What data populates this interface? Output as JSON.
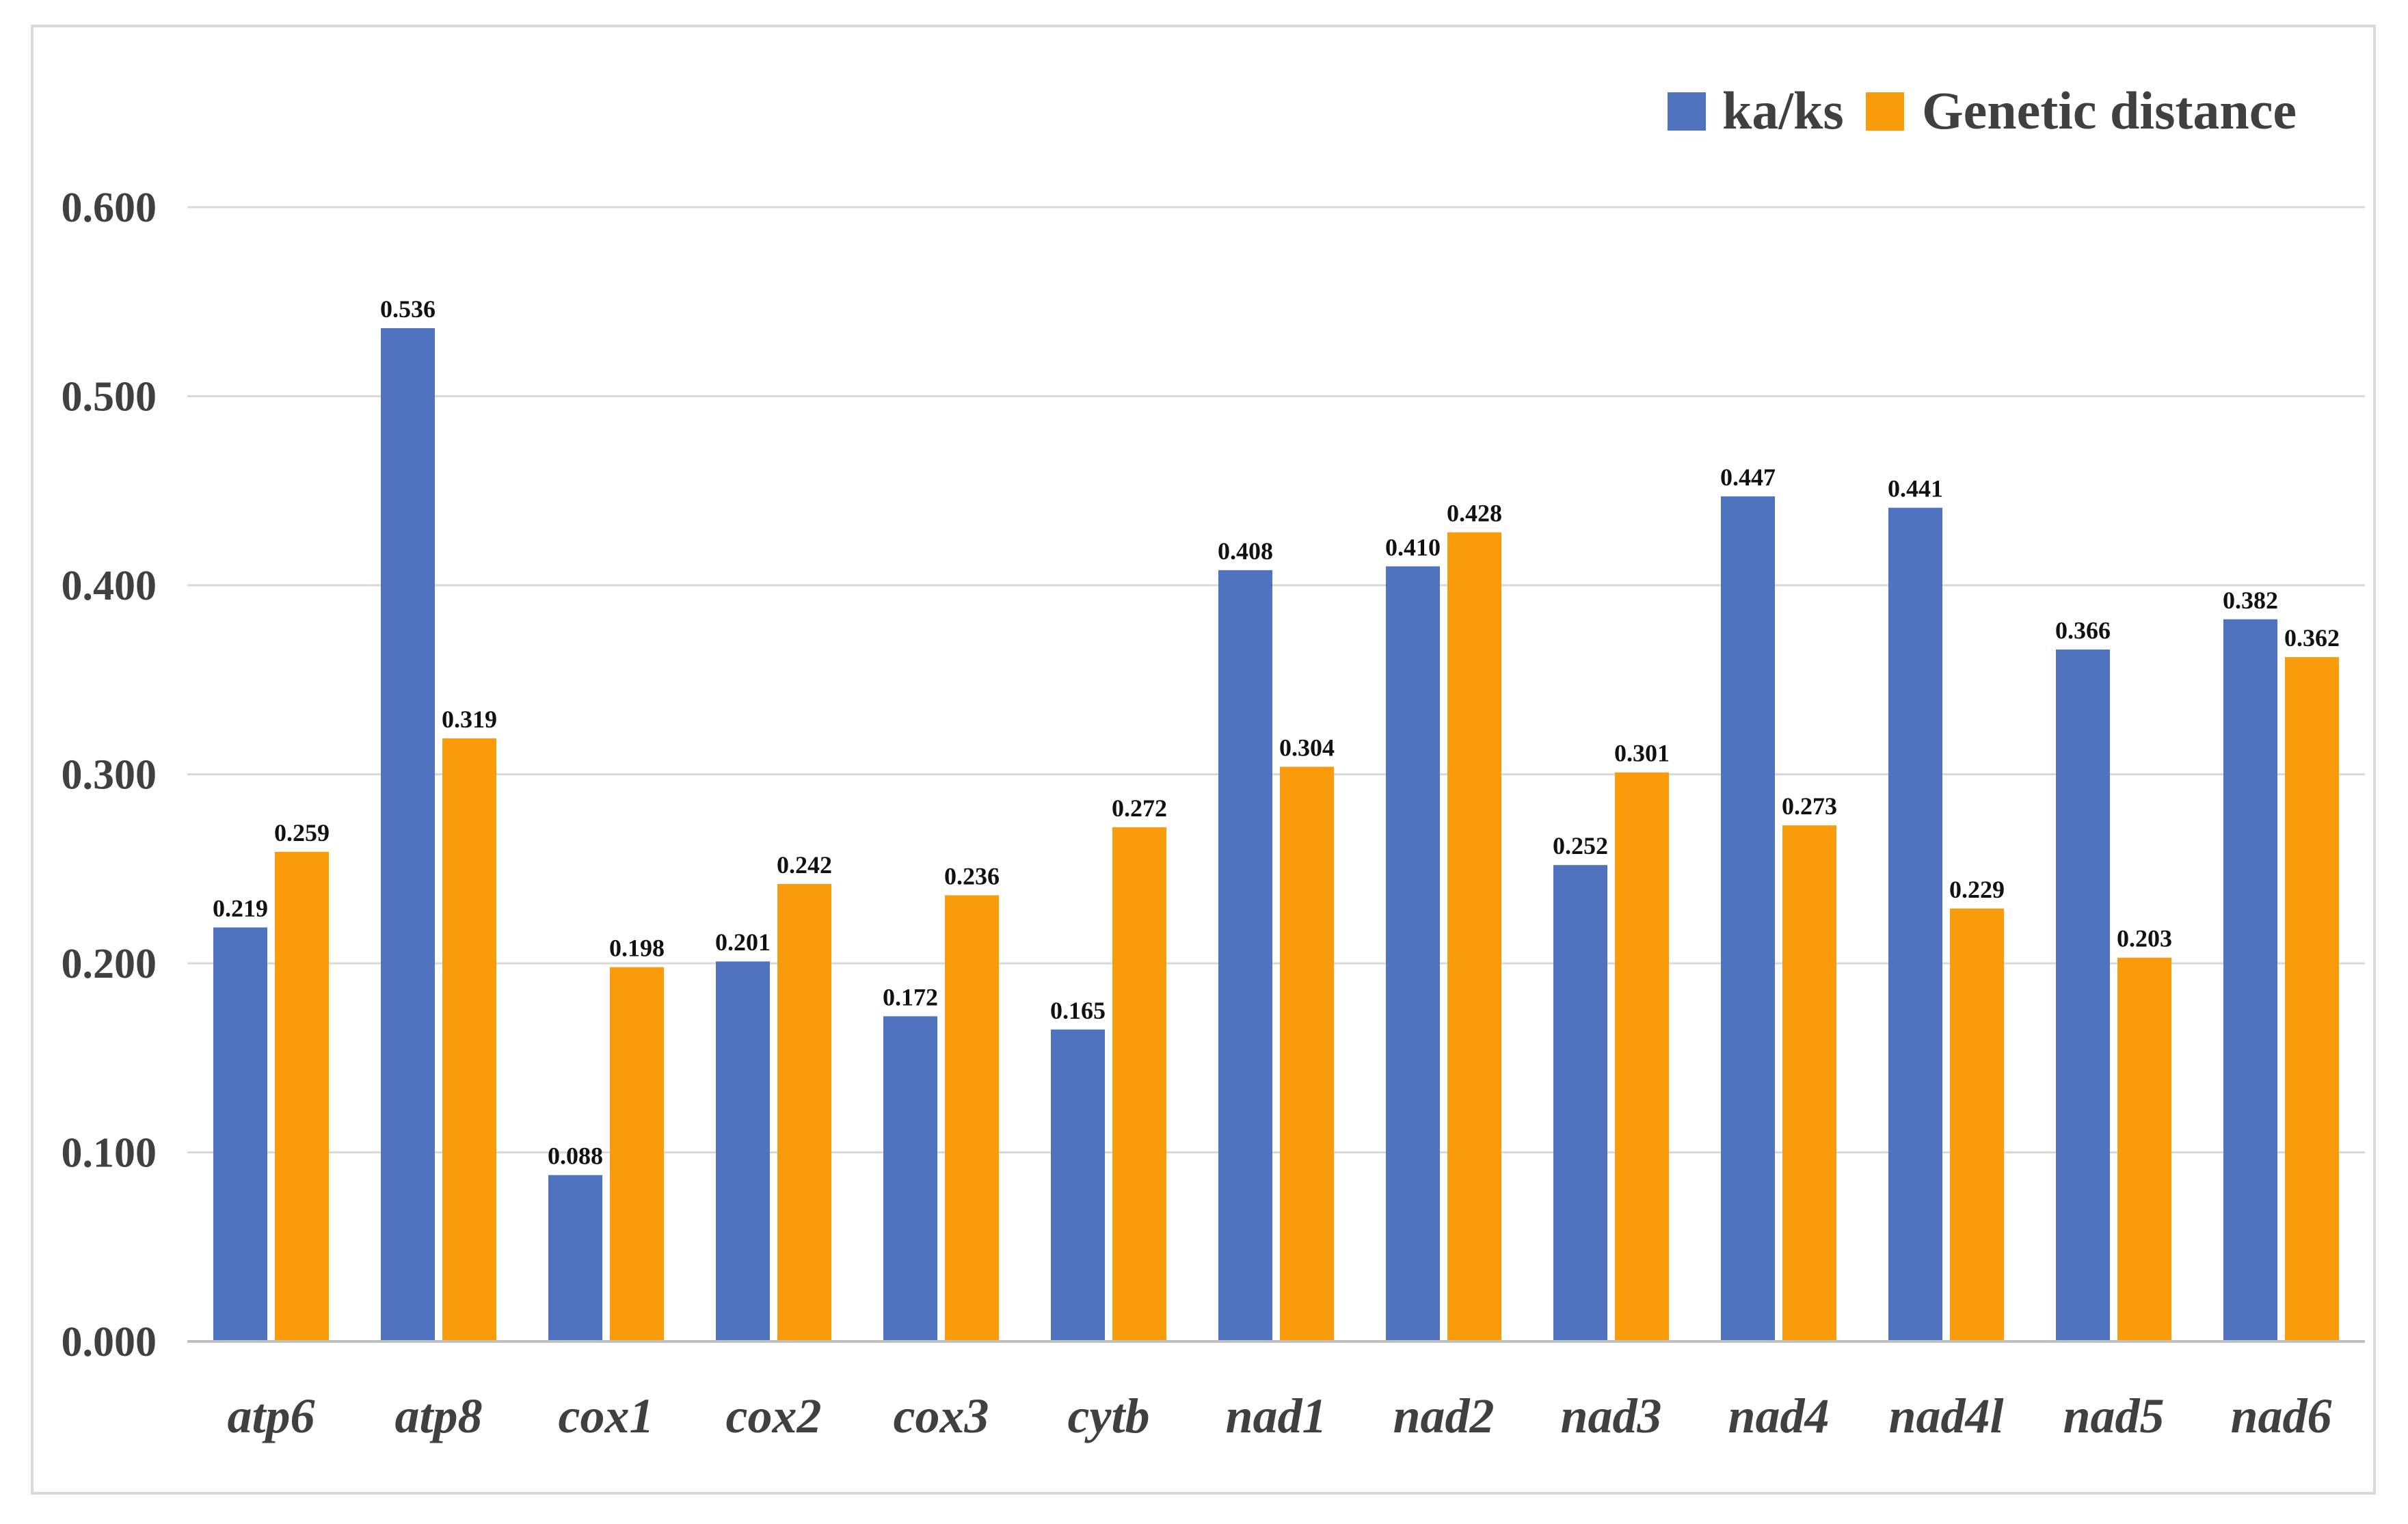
{
  "chart_data": {
    "type": "bar",
    "title": "",
    "xlabel": "",
    "ylabel": "",
    "ylim": [
      0,
      0.6
    ],
    "yticks": [
      "0.000",
      "0.100",
      "0.200",
      "0.300",
      "0.400",
      "0.500",
      "0.600"
    ],
    "grid": true,
    "legend_position": "top-right",
    "categories": [
      "atp6",
      "atp8",
      "cox1",
      "cox2",
      "cox3",
      "cytb",
      "nad1",
      "nad2",
      "nad3",
      "nad4",
      "nad4l",
      "nad5",
      "nad6"
    ],
    "series": [
      {
        "name": "ka/ks",
        "color": "#4f73be",
        "values": [
          0.219,
          0.536,
          0.088,
          0.201,
          0.172,
          0.165,
          0.408,
          0.41,
          0.252,
          0.447,
          0.441,
          0.366,
          0.382
        ],
        "labels": [
          "0.219",
          "0.536",
          "0.088",
          "0.201",
          "0.172",
          "0.165",
          "0.408",
          "0.410",
          "0.252",
          "0.447",
          "0.441",
          "0.366",
          "0.382"
        ]
      },
      {
        "name": "Genetic distance",
        "color": "#f99b0a",
        "values": [
          0.259,
          0.319,
          0.198,
          0.242,
          0.236,
          0.272,
          0.304,
          0.428,
          0.301,
          0.273,
          0.229,
          0.203,
          0.362
        ],
        "labels": [
          "0.259",
          "0.319",
          "0.198",
          "0.242",
          "0.236",
          "0.272",
          "0.304",
          "0.428",
          "0.301",
          "0.273",
          "0.229",
          "0.203",
          "0.362"
        ]
      }
    ]
  }
}
